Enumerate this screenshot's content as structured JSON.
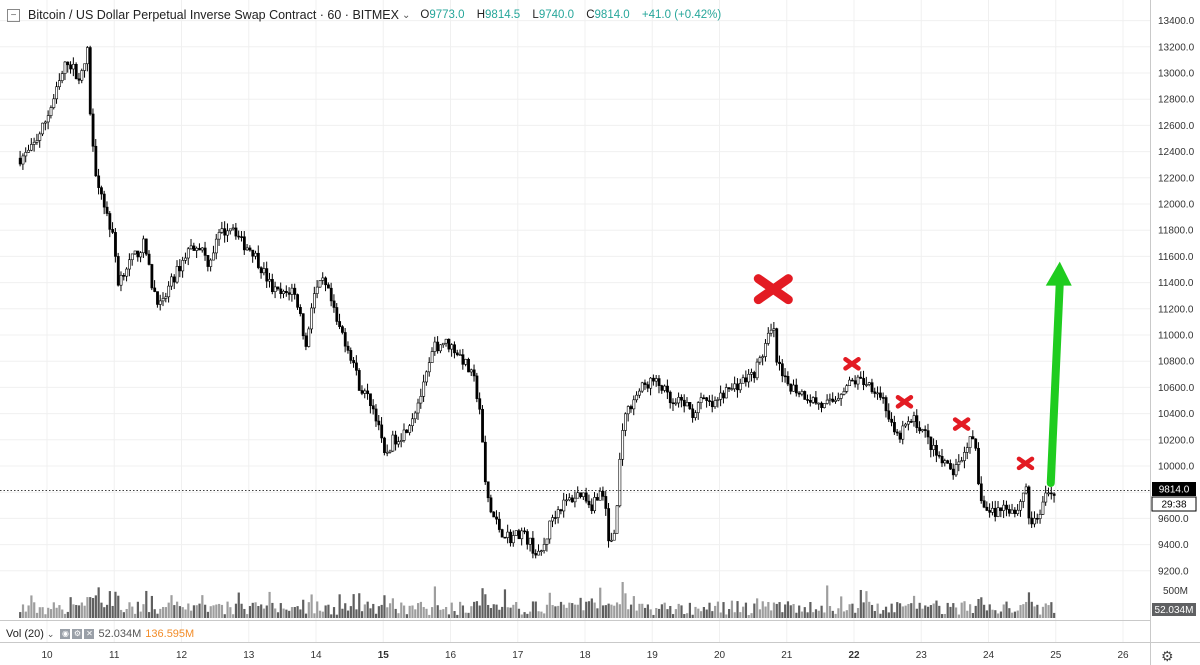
{
  "header": {
    "collapse_icon": "minus-square-icon",
    "title": "Bitcoin / US Dollar Perpetual Inverse Swap Contract · 60 · BITMEX",
    "open_label": "O",
    "open": "9773.0",
    "high_label": "H",
    "high": "9814.5",
    "low_label": "L",
    "low": "9740.0",
    "close_label": "C",
    "close": "9814.0",
    "change": "+41.0 (+0.42%)"
  },
  "volume_header": {
    "label": "Vol (20)",
    "value_1": "52.034M",
    "value_2": "136.595M"
  },
  "price_badge": {
    "value": "9814.0",
    "countdown": "29:38"
  },
  "colors": {
    "candle": "#000000",
    "volume_up": "#9e9e9e",
    "volume_down": "#5f5f5f",
    "marker": "#e31b23",
    "arrow": "#1fcc1f",
    "grid": "#f0f0f0"
  },
  "chart_data": {
    "type": "candlestick",
    "y_ticks": [
      "13400.0",
      "13200.0",
      "13000.0",
      "12800.0",
      "12600.0",
      "12400.0",
      "12200.0",
      "12000.0",
      "11800.0",
      "11600.0",
      "11400.0",
      "11200.0",
      "11000.0",
      "10800.0",
      "10600.0",
      "10400.0",
      "10200.0",
      "10000.0",
      "9800.0",
      "9600.0",
      "9400.0",
      "9200.0"
    ],
    "ylim": [
      9100,
      13500
    ],
    "x_ticks": [
      "10",
      "11",
      "12",
      "13",
      "14",
      "15",
      "16",
      "17",
      "18",
      "19",
      "20",
      "21",
      "22",
      "23",
      "24",
      "25",
      "26"
    ],
    "x_range": [
      9.6,
      26.3
    ],
    "current_price": 9814,
    "volume_ticks": [
      "500M"
    ],
    "volume_current": "52.034M",
    "volume_max": 800,
    "path": [
      [
        9.6,
        12350
      ],
      [
        9.75,
        12400
      ],
      [
        9.95,
        12600
      ],
      [
        10.1,
        12800
      ],
      [
        10.3,
        13100
      ],
      [
        10.5,
        12950
      ],
      [
        10.62,
        13200
      ],
      [
        10.6,
        13000
      ],
      [
        10.7,
        12300
      ],
      [
        10.85,
        12000
      ],
      [
        11.0,
        11700
      ],
      [
        11.05,
        11400
      ],
      [
        11.15,
        11500
      ],
      [
        11.3,
        11600
      ],
      [
        11.45,
        11700
      ],
      [
        11.55,
        11400
      ],
      [
        11.7,
        11200
      ],
      [
        11.8,
        11350
      ],
      [
        11.95,
        11500
      ],
      [
        12.1,
        11650
      ],
      [
        12.25,
        11700
      ],
      [
        12.4,
        11550
      ],
      [
        12.55,
        11750
      ],
      [
        12.75,
        11850
      ],
      [
        12.9,
        11700
      ],
      [
        13.05,
        11650
      ],
      [
        13.2,
        11500
      ],
      [
        13.35,
        11350
      ],
      [
        13.5,
        11300
      ],
      [
        13.65,
        11350
      ],
      [
        13.75,
        11200
      ],
      [
        13.85,
        10900
      ],
      [
        13.95,
        11300
      ],
      [
        14.1,
        11400
      ],
      [
        14.2,
        11300
      ],
      [
        14.3,
        11100
      ],
      [
        14.4,
        11000
      ],
      [
        14.55,
        10800
      ],
      [
        14.65,
        10600
      ],
      [
        14.8,
        10500
      ],
      [
        14.95,
        10300
      ],
      [
        15.0,
        10050
      ],
      [
        15.15,
        10200
      ],
      [
        15.3,
        10250
      ],
      [
        15.45,
        10400
      ],
      [
        15.6,
        10600
      ],
      [
        15.75,
        10900
      ],
      [
        15.9,
        10950
      ],
      [
        16.05,
        10900
      ],
      [
        16.2,
        10800
      ],
      [
        16.35,
        10650
      ],
      [
        16.45,
        10400
      ],
      [
        16.5,
        9900
      ],
      [
        16.6,
        9650
      ],
      [
        16.75,
        9500
      ],
      [
        16.9,
        9450
      ],
      [
        17.05,
        9500
      ],
      [
        17.2,
        9400
      ],
      [
        17.3,
        9300
      ],
      [
        17.4,
        9400
      ],
      [
        17.5,
        9600
      ],
      [
        17.65,
        9700
      ],
      [
        17.8,
        9750
      ],
      [
        17.95,
        9800
      ],
      [
        18.1,
        9700
      ],
      [
        18.2,
        9800
      ],
      [
        18.3,
        9750
      ],
      [
        18.35,
        9400
      ],
      [
        18.45,
        9500
      ],
      [
        18.55,
        10300
      ],
      [
        18.7,
        10500
      ],
      [
        18.85,
        10600
      ],
      [
        19.0,
        10650
      ],
      [
        19.15,
        10600
      ],
      [
        19.3,
        10450
      ],
      [
        19.45,
        10500
      ],
      [
        19.6,
        10400
      ],
      [
        19.75,
        10500
      ],
      [
        19.9,
        10450
      ],
      [
        20.05,
        10550
      ],
      [
        20.2,
        10600
      ],
      [
        20.35,
        10650
      ],
      [
        20.5,
        10700
      ],
      [
        20.6,
        10800
      ],
      [
        20.7,
        10950
      ],
      [
        20.8,
        11050
      ],
      [
        20.85,
        10800
      ],
      [
        20.95,
        10650
      ],
      [
        21.1,
        10600
      ],
      [
        21.25,
        10550
      ],
      [
        21.4,
        10500
      ],
      [
        21.55,
        10450
      ],
      [
        21.7,
        10500
      ],
      [
        21.85,
        10600
      ],
      [
        22.0,
        10650
      ],
      [
        22.15,
        10650
      ],
      [
        22.3,
        10600
      ],
      [
        22.45,
        10500
      ],
      [
        22.55,
        10300
      ],
      [
        22.65,
        10200
      ],
      [
        22.75,
        10300
      ],
      [
        22.9,
        10350
      ],
      [
        23.05,
        10250
      ],
      [
        23.2,
        10100
      ],
      [
        23.35,
        10000
      ],
      [
        23.5,
        9950
      ],
      [
        23.6,
        10050
      ],
      [
        23.7,
        10200
      ],
      [
        23.8,
        10150
      ],
      [
        23.85,
        9850
      ],
      [
        23.95,
        9650
      ],
      [
        24.1,
        9650
      ],
      [
        24.25,
        9700
      ],
      [
        24.4,
        9650
      ],
      [
        24.5,
        9750
      ],
      [
        24.55,
        9900
      ],
      [
        24.6,
        9600
      ],
      [
        24.7,
        9550
      ],
      [
        24.8,
        9700
      ],
      [
        24.9,
        9800
      ],
      [
        24.98,
        9814
      ]
    ],
    "annotations": [
      {
        "shape": "cross",
        "x": 20.8,
        "y": 11350,
        "size": "large"
      },
      {
        "shape": "cross",
        "x": 21.97,
        "y": 10780,
        "size": "small"
      },
      {
        "shape": "cross",
        "x": 22.75,
        "y": 10490,
        "size": "small"
      },
      {
        "shape": "cross",
        "x": 23.6,
        "y": 10320,
        "size": "small"
      },
      {
        "shape": "cross",
        "x": 24.55,
        "y": 10020,
        "size": "small"
      },
      {
        "shape": "arrow-up",
        "x": 25.0,
        "y_from": 9870,
        "y_to": 11560
      }
    ]
  }
}
